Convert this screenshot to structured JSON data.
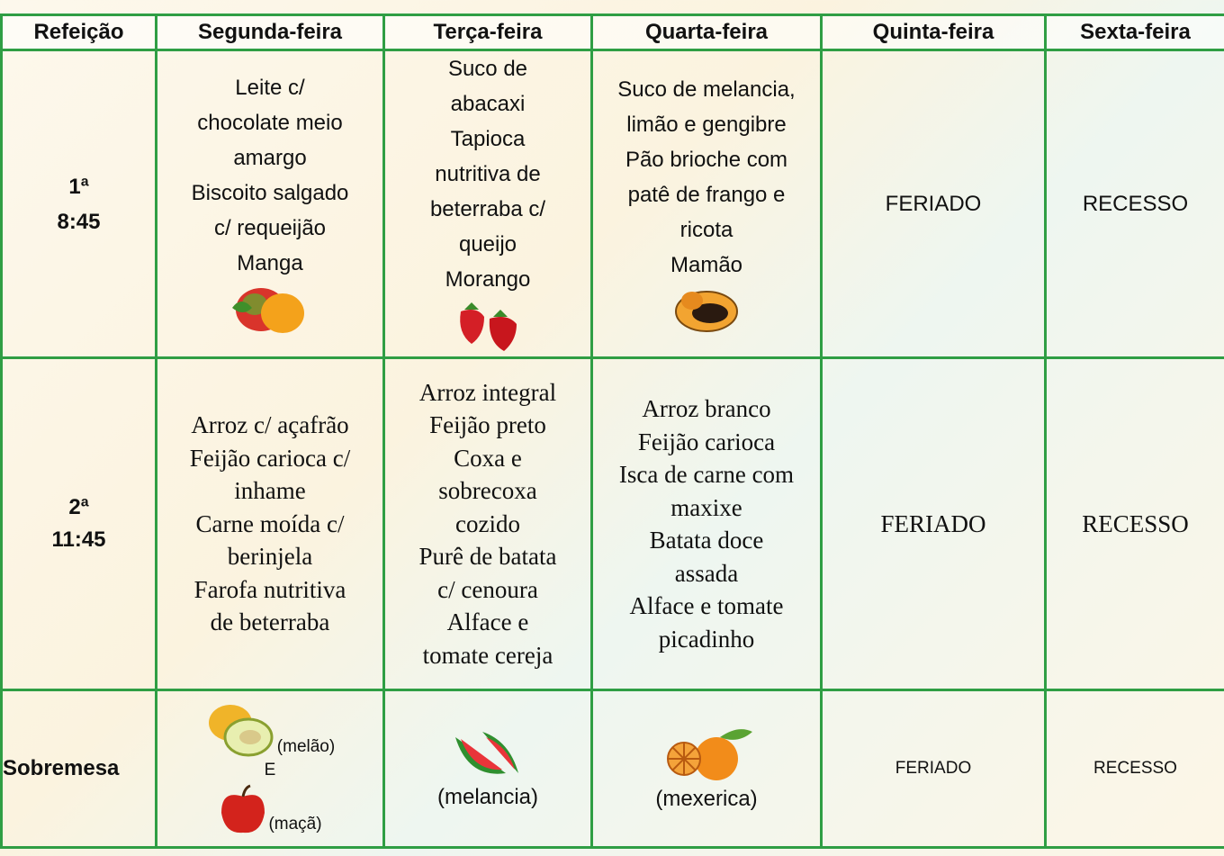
{
  "table": {
    "header": [
      "Refeição",
      "Segunda-feira",
      "Terça-feira",
      "Quarta-feira",
      "Quinta-feira",
      "Sexta-feira"
    ],
    "rows": [
      {
        "label": [
          "1ª",
          "8:45"
        ],
        "cells": [
          [
            "Leite c/",
            "chocolate meio",
            "amargo",
            "Biscoito salgado",
            "c/ requeijão",
            "Manga"
          ],
          [
            "Suco de",
            "abacaxi",
            "Tapioca",
            "nutritiva de",
            "beterraba c/",
            "queijo",
            "Morango"
          ],
          [
            "Suco de melancia,",
            "limão e gengibre",
            "Pão brioche com",
            "patê de frango e",
            "ricota",
            "Mamão"
          ],
          [
            "FERIADO"
          ],
          [
            "RECESSO"
          ]
        ]
      },
      {
        "label": [
          "2ª",
          "11:45"
        ],
        "cells": [
          [
            "Arroz c/ açafrão",
            "Feijão carioca c/",
            "inhame",
            "Carne moída c/",
            "berinjela",
            "Farofa nutritiva",
            "de beterraba"
          ],
          [
            "Arroz integral",
            "Feijão preto",
            "Coxa e",
            "sobrecoxa",
            "cozido",
            "Purê de batata",
            "c/ cenoura",
            "Alface e",
            "tomate cereja"
          ],
          [
            "Arroz branco",
            "Feijão carioca",
            "Isca de carne com",
            "maxixe",
            "Batata doce",
            "assada",
            "Alface e tomate",
            "picadinho"
          ],
          [
            "FERIADO"
          ],
          [
            "RECESSO"
          ]
        ]
      },
      {
        "label": [
          "Sobremesa"
        ],
        "cells": [
          [
            "(melão)",
            "E",
            "(maçã)"
          ],
          [
            "(melancia)"
          ],
          [
            "(mexerica)"
          ],
          [
            "FERIADO"
          ],
          [
            "RECESSO"
          ]
        ]
      }
    ]
  }
}
